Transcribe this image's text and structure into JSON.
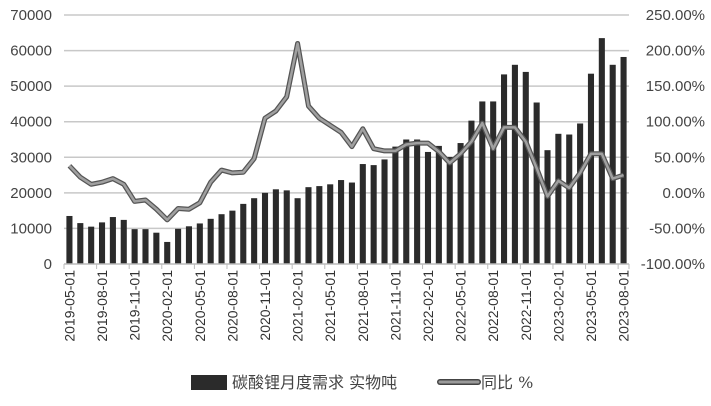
{
  "chart_data": {
    "type": "bar+line",
    "title": "",
    "categories": [
      "2019-05-01",
      "2019-06-01",
      "2019-07-01",
      "2019-08-01",
      "2019-09-01",
      "2019-10-01",
      "2019-11-01",
      "2019-12-01",
      "2020-01-01",
      "2020-02-01",
      "2020-03-01",
      "2020-04-01",
      "2020-05-01",
      "2020-06-01",
      "2020-07-01",
      "2020-08-01",
      "2020-09-01",
      "2020-10-01",
      "2020-11-01",
      "2020-12-01",
      "2021-01-01",
      "2021-02-01",
      "2021-03-01",
      "2021-04-01",
      "2021-05-01",
      "2021-06-01",
      "2021-07-01",
      "2021-08-01",
      "2021-09-01",
      "2021-10-01",
      "2021-11-01",
      "2021-12-01",
      "2022-01-01",
      "2022-02-01",
      "2022-03-01",
      "2022-04-01",
      "2022-05-01",
      "2022-06-01",
      "2022-07-01",
      "2022-08-01",
      "2022-09-01",
      "2022-10-01",
      "2022-11-01",
      "2022-12-01",
      "2023-01-01",
      "2023-02-01",
      "2023-03-01",
      "2023-04-01",
      "2023-05-01",
      "2023-06-01",
      "2023-07-01",
      "2023-08-01"
    ],
    "x_tick_labels": [
      "2019-05-01",
      "2019-08-01",
      "2019-11-01",
      "2020-02-01",
      "2020-05-01",
      "2020-08-01",
      "2020-11-01",
      "2021-02-01",
      "2021-05-01",
      "2021-08-01",
      "2021-11-01",
      "2022-02-01",
      "2022-05-01",
      "2022-08-01",
      "2022-11-01",
      "2023-02-01",
      "2023-05-01",
      "2023-08-01"
    ],
    "series": [
      {
        "name": "碳酸锂月度需求 实物吨",
        "type": "bar",
        "axis": "left",
        "color": "#2b2b2b",
        "values": [
          13500,
          11500,
          10500,
          11700,
          13200,
          12400,
          9800,
          9800,
          8800,
          6200,
          9900,
          10600,
          11400,
          12700,
          14000,
          15000,
          16900,
          18500,
          20000,
          21000,
          20700,
          18500,
          21600,
          21900,
          22400,
          23600,
          22900,
          28100,
          27800,
          29400,
          33000,
          35000,
          35000,
          31500,
          33200,
          30100,
          34000,
          40300,
          45700,
          45700,
          53300,
          56000,
          54000,
          45400,
          32000,
          36600,
          36400,
          39500,
          53500,
          63500,
          56000,
          58200
        ]
      },
      {
        "name": "同比 %",
        "type": "line",
        "axis": "right",
        "color": "#8a8a8a",
        "values": [
          38,
          22,
          12,
          15,
          20,
          12,
          -12,
          -10,
          -23,
          -38,
          -22,
          -23,
          -14,
          15,
          32,
          28,
          29,
          48,
          105,
          115,
          135,
          210,
          122,
          105,
          95,
          85,
          65,
          90,
          62,
          59,
          59,
          68,
          70,
          70,
          58,
          42,
          55,
          72,
          98,
          62,
          92,
          92,
          72,
          35,
          -5,
          17,
          7,
          28,
          55,
          55,
          20,
          25
        ]
      }
    ],
    "y_left": {
      "label": "",
      "ticks": [
        "0",
        "10000",
        "20000",
        "30000",
        "40000",
        "50000",
        "60000",
        "70000"
      ],
      "range": [
        0,
        70000
      ]
    },
    "y_right": {
      "label": "",
      "ticks": [
        "-100.00%",
        "-50.00%",
        "0.00%",
        "50.00%",
        "100.00%",
        "150.00%",
        "200.00%",
        "250.00%"
      ],
      "range": [
        -100,
        250
      ]
    },
    "grid": true,
    "legend_position": "bottom",
    "legend": [
      {
        "label": "碳酸锂月度需求 实物吨",
        "swatch": "bar",
        "color": "#2b2b2b"
      },
      {
        "label": "同比 %",
        "swatch": "line",
        "color": "#8a8a8a"
      }
    ]
  }
}
